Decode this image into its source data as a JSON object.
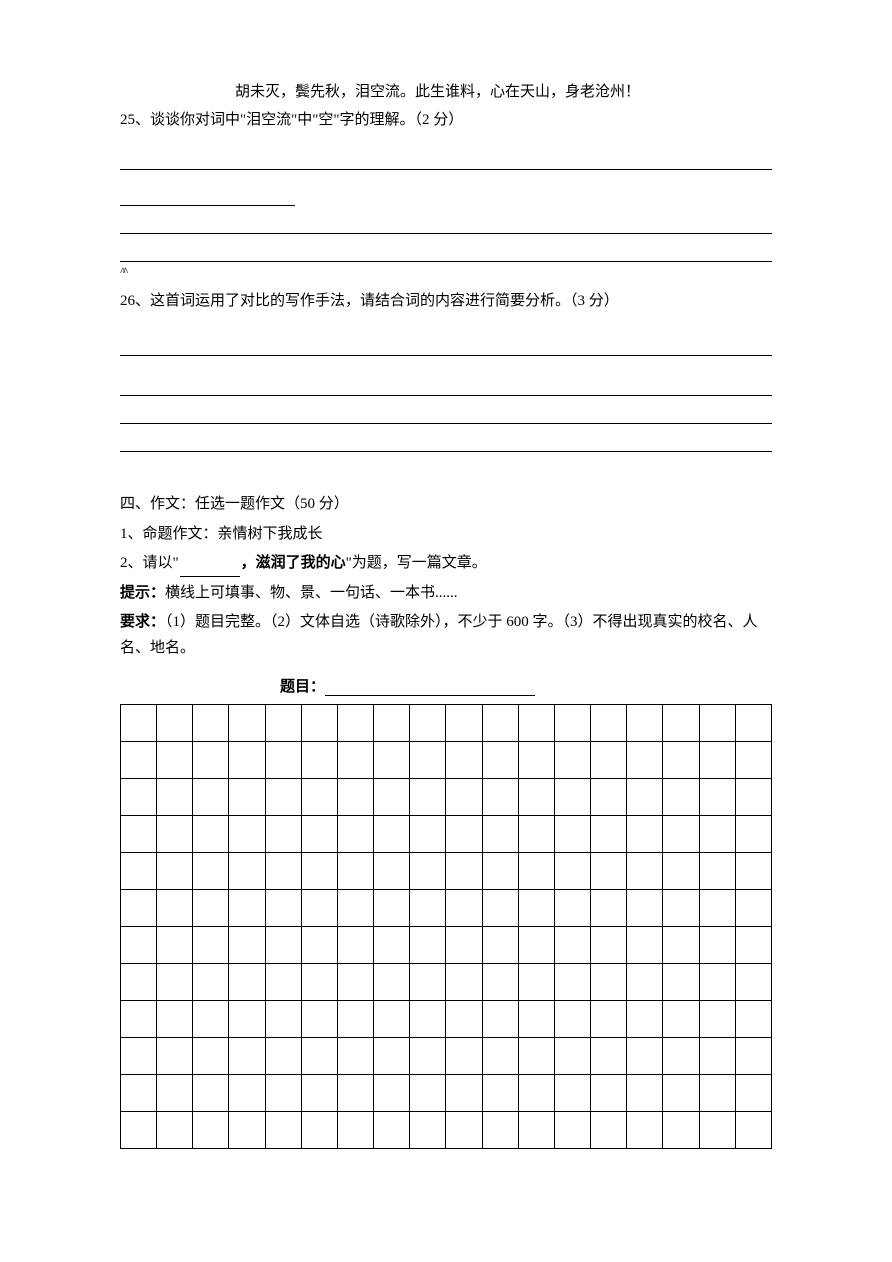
{
  "poem": {
    "line": "胡未灭，鬓先秋，泪空流。此生谁料，心在天山，身老沧州！"
  },
  "q25": {
    "number": "25、",
    "text": "谈谈你对词中\"泪空流\"中\"空\"字的理解。（2 分）"
  },
  "caret": "^^",
  "q26": {
    "number": "26、",
    "text": "这首词运用了对比的写作手法，请结合词的内容进行简要分析。（3 分）"
  },
  "section4": {
    "heading": "四、作文：任选一题作文（50 分）",
    "opt1": "1、命题作文：亲情树下我成长",
    "opt2_prefix": "2、请以\"",
    "opt2_bold": "，滋润了我的心",
    "opt2_suffix": "\"为题，写一篇文章。",
    "hint_label": "提示：",
    "hint_text": "横线上可填事、物、景、一句话、一本书......",
    "req_label": "要求：",
    "req_text": "（1）题目完整。（2）文体自选（诗歌除外），不少于 600 字。（3）不得出现真实的校名、人名、地名。",
    "title_label": "题目："
  },
  "grid": {
    "rows": 12,
    "cols": 18
  },
  "colors": {
    "text": "#000000",
    "background": "#ffffff",
    "line": "#000000"
  }
}
